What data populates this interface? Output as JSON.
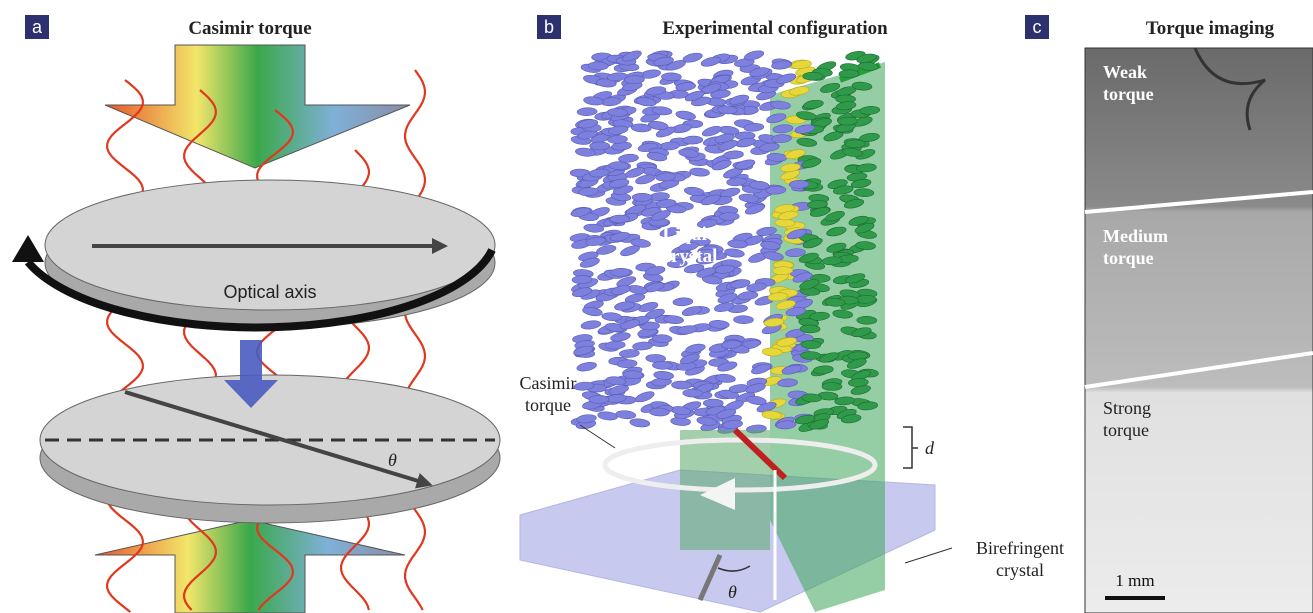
{
  "panels": [
    {
      "label": "a",
      "title": "Casimir torque",
      "optical_axis": "Optical axis",
      "angle": "θ"
    },
    {
      "label": "b",
      "title": "Experimental configuration",
      "liquid_crystal": [
        "Liquid",
        "crystal"
      ],
      "casimir_torque": [
        "Casimir",
        "torque"
      ],
      "distance": "d",
      "birefringent_crystal": [
        "Birefringent",
        "crystal"
      ],
      "angle": "θ"
    },
    {
      "label": "c",
      "title": "Torque imaging",
      "weak": [
        "Weak",
        "torque"
      ],
      "medium": [
        "Medium",
        "torque"
      ],
      "strong": [
        "Strong",
        "torque"
      ],
      "scale": "1 mm"
    }
  ]
}
